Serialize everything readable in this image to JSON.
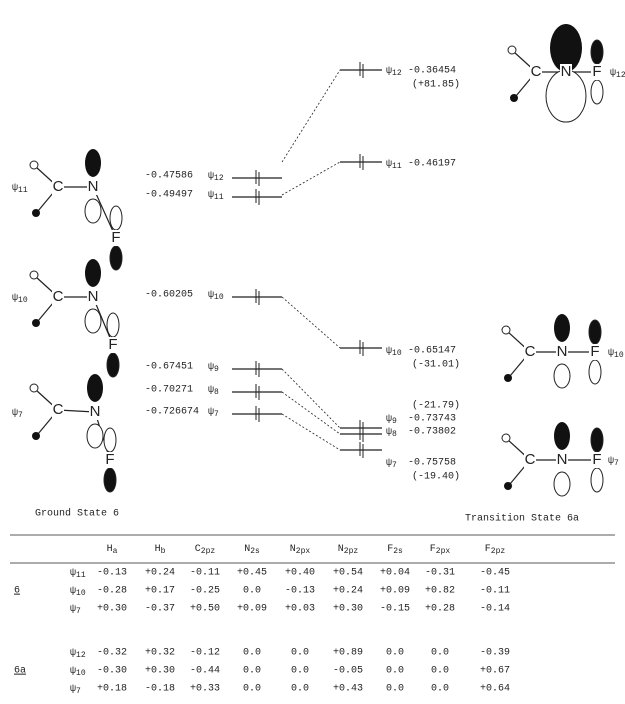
{
  "left_levels": [
    {
      "value": "-0.47586",
      "label": "ψ12"
    },
    {
      "value": "-0.49497",
      "label": "ψ11"
    },
    {
      "value": "-0.60205",
      "label": "ψ10"
    },
    {
      "value": "-0.67451",
      "label": "ψ9"
    },
    {
      "value": "-0.70271",
      "label": "ψ8"
    },
    {
      "value": "-0.726674",
      "label": "ψ7"
    }
  ],
  "right_levels": [
    {
      "label": "ψ12",
      "value": "-0.36454",
      "note": "(+81.85)"
    },
    {
      "label": "ψ11",
      "value": "-0.46197"
    },
    {
      "label": "ψ10",
      "value": "-0.65147",
      "note": "(-31.01)"
    },
    {
      "label": "ψ9",
      "value": "-0.73743",
      "note": "(-21.79)"
    },
    {
      "label": "ψ8",
      "value": "-0.73802"
    },
    {
      "label": "ψ7",
      "value": "-0.75758",
      "note": "(-19.40)"
    }
  ],
  "drawings": [
    {
      "label": "ψ11",
      "atoms": [
        "C",
        "N",
        "F"
      ]
    },
    {
      "label": "ψ10",
      "atoms": [
        "C",
        "N",
        "F"
      ]
    },
    {
      "label": "ψ7",
      "atoms": [
        "C",
        "N",
        "F"
      ]
    },
    {
      "label": "ψ12",
      "atoms": [
        "C",
        "N",
        "F"
      ]
    },
    {
      "label": "ψ10",
      "atoms": [
        "C",
        "N",
        "F"
      ]
    },
    {
      "label": "ψ7",
      "atoms": [
        "C",
        "N",
        "F"
      ]
    }
  ],
  "captions": {
    "ground": "Ground State 6",
    "transition": "Transition State 6a"
  },
  "table": {
    "columns": [
      "Ha",
      "Hb",
      "C2pz",
      "N2s",
      "N2px",
      "N2pz",
      "F2s",
      "F2px",
      "F2pz"
    ],
    "groups": [
      {
        "label": "6",
        "rows": [
          {
            "orbital": "ψ11",
            "values": [
              "-0.13",
              "+0.24",
              "-0.11",
              "+0.45",
              "+0.40",
              "+0.54",
              "+0.04",
              "-0.31",
              "-0.45"
            ]
          },
          {
            "orbital": "ψ10",
            "values": [
              "-0.28",
              "+0.17",
              "-0.25",
              "0.0",
              "-0.13",
              "+0.24",
              "+0.09",
              "+0.82",
              "-0.11"
            ]
          },
          {
            "orbital": "ψ7",
            "values": [
              "+0.30",
              "-0.37",
              "+0.50",
              "+0.09",
              "+0.03",
              "+0.30",
              "-0.15",
              "+0.28",
              "-0.14"
            ]
          }
        ]
      },
      {
        "label": "6a",
        "rows": [
          {
            "orbital": "ψ12",
            "values": [
              "-0.32",
              "+0.32",
              "-0.12",
              "0.0",
              "0.0",
              "+0.89",
              "0.0",
              "0.0",
              "-0.39"
            ]
          },
          {
            "orbital": "ψ10",
            "values": [
              "-0.30",
              "+0.30",
              "-0.44",
              "0.0",
              "0.0",
              "-0.05",
              "0.0",
              "0.0",
              "+0.67"
            ]
          },
          {
            "orbital": "ψ7",
            "values": [
              "+0.18",
              "-0.18",
              "+0.33",
              "0.0",
              "0.0",
              "+0.43",
              "0.0",
              "0.0",
              "+0.64"
            ]
          }
        ]
      }
    ]
  }
}
